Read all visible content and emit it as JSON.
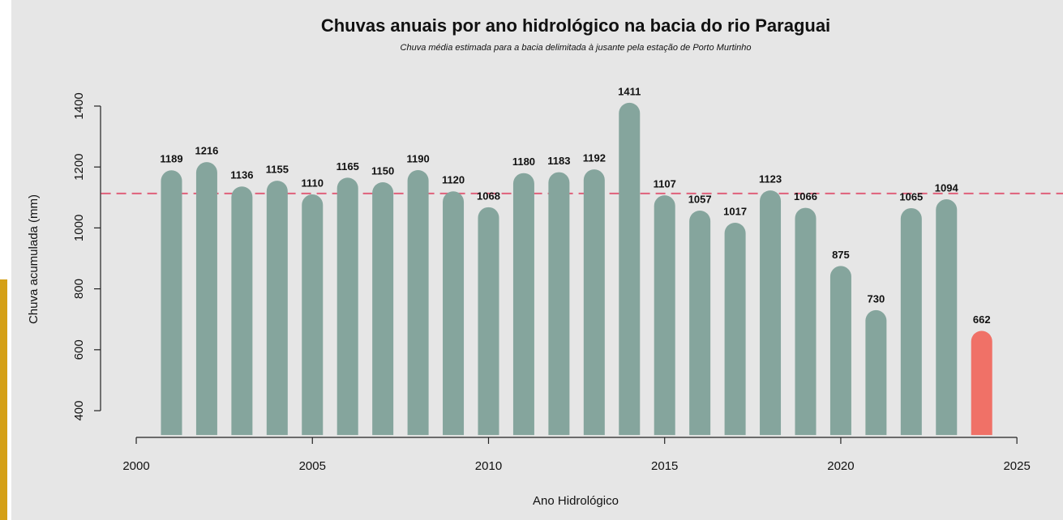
{
  "chart_data": {
    "type": "bar",
    "title": "Chuvas anuais por ano hidrológico na bacia do rio Paraguai",
    "subtitle": "Chuva média estimada para a bacia delimitada à jusante pela estação de Porto Murtinho",
    "x_label": "Ano Hidrológico",
    "y_label": "Chuva acumulada (mm)",
    "x": [
      2001,
      2002,
      2003,
      2004,
      2005,
      2006,
      2007,
      2008,
      2009,
      2010,
      2011,
      2012,
      2013,
      2014,
      2015,
      2016,
      2017,
      2018,
      2019,
      2020,
      2021,
      2022,
      2023,
      2024
    ],
    "values": [
      1189,
      1216,
      1136,
      1155,
      1110,
      1165,
      1150,
      1190,
      1120,
      1068,
      1180,
      1183,
      1192,
      1411,
      1107,
      1057,
      1017,
      1123,
      1066,
      875,
      730,
      1065,
      1094,
      662
    ],
    "colors": [
      "#85a59d",
      "#85a59d",
      "#85a59d",
      "#85a59d",
      "#85a59d",
      "#85a59d",
      "#85a59d",
      "#85a59d",
      "#85a59d",
      "#85a59d",
      "#85a59d",
      "#85a59d",
      "#85a59d",
      "#85a59d",
      "#85a59d",
      "#85a59d",
      "#85a59d",
      "#85a59d",
      "#85a59d",
      "#85a59d",
      "#85a59d",
      "#85a59d",
      "#85a59d",
      "#f07167"
    ],
    "mean_line": {
      "value": 1113,
      "color": "#e0607a"
    },
    "xlim": [
      1999,
      2026
    ],
    "xticks": [
      2000,
      2005,
      2010,
      2015,
      2020,
      2025
    ],
    "ylim": [
      320,
      1460
    ],
    "yticks": [
      400,
      600,
      800,
      1000,
      1200,
      1400
    ]
  }
}
